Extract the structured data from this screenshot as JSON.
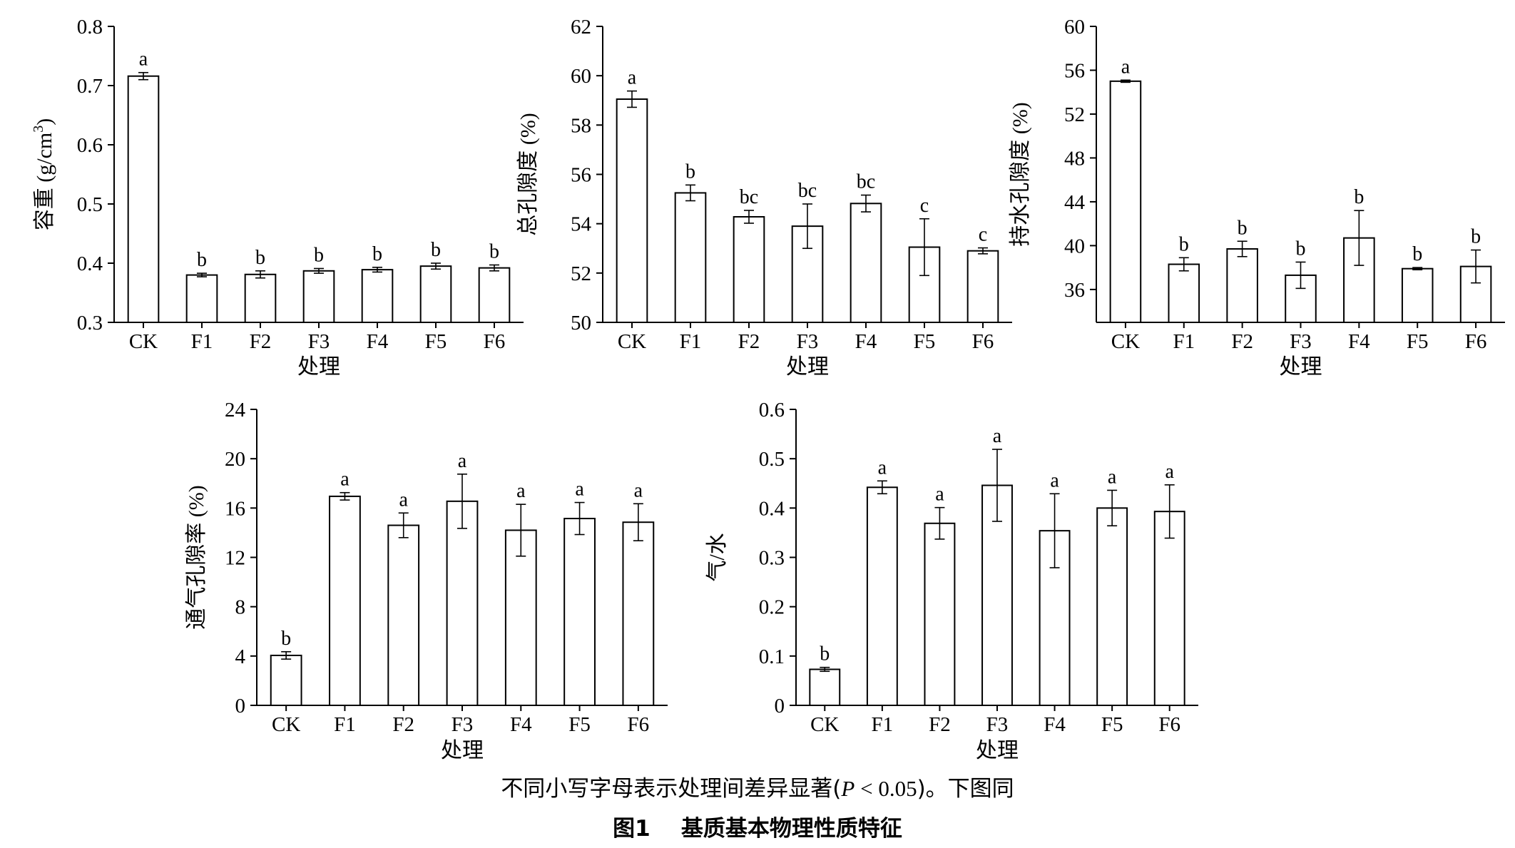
{
  "chart_data": [
    {
      "type": "bar",
      "categories": [
        "CK",
        "F1",
        "F2",
        "F3",
        "F4",
        "F5",
        "F6"
      ],
      "values": [
        0.716,
        0.38,
        0.381,
        0.387,
        0.389,
        0.395,
        0.392
      ],
      "errors": [
        0.006,
        0.003,
        0.006,
        0.004,
        0.004,
        0.005,
        0.005
      ],
      "letters": [
        "a",
        "b",
        "b",
        "b",
        "b",
        "b",
        "b"
      ],
      "ylabel": "容重 (g/cm",
      "ylabel_sup": "3",
      "ylabel_tail": ")",
      "xlabel": "处理",
      "ylim": [
        0.3,
        0.8
      ],
      "yticks": [
        0.3,
        0.4,
        0.5,
        0.6,
        0.7,
        0.8
      ],
      "ytick_labels": [
        "0.3",
        "0.4",
        "0.5",
        "0.6",
        "0.7",
        "0.8"
      ],
      "grid": false
    },
    {
      "type": "bar",
      "categories": [
        "CK",
        "F1",
        "F2",
        "F3",
        "F4",
        "F5",
        "F6"
      ],
      "values": [
        59.05,
        55.25,
        54.28,
        53.9,
        54.82,
        53.05,
        52.9
      ],
      "errors": [
        0.33,
        0.32,
        0.26,
        0.9,
        0.34,
        1.15,
        0.12
      ],
      "letters": [
        "a",
        "b",
        "bc",
        "bc",
        "bc",
        "c",
        "c"
      ],
      "ylabel": "总孔隙度 (%)",
      "xlabel": "处理",
      "ylim": [
        50,
        62
      ],
      "yticks": [
        50,
        52,
        54,
        56,
        58,
        60,
        62
      ],
      "ytick_labels": [
        "50",
        "52",
        "54",
        "56",
        "58",
        "60",
        "62"
      ],
      "grid": false
    },
    {
      "type": "bar",
      "categories": [
        "CK",
        "F1",
        "F2",
        "F3",
        "F4",
        "F5",
        "F6"
      ],
      "values": [
        55.0,
        38.3,
        39.7,
        37.3,
        40.7,
        37.9,
        38.1
      ],
      "errors": [
        0.1,
        0.6,
        0.7,
        1.2,
        2.5,
        0.1,
        1.5
      ],
      "letters": [
        "a",
        "b",
        "b",
        "b",
        "b",
        "b",
        "b"
      ],
      "ylabel": "持水孔隙度 (%)",
      "xlabel": "处理",
      "ylim": [
        33,
        60
      ],
      "yticks": [
        36,
        40,
        44,
        48,
        52,
        56,
        60
      ],
      "ytick_labels": [
        "36",
        "40",
        "44",
        "48",
        "52",
        "56",
        "60"
      ],
      "grid": false
    },
    {
      "type": "bar",
      "categories": [
        "CK",
        "F1",
        "F2",
        "F3",
        "F4",
        "F5",
        "F6"
      ],
      "values": [
        4.05,
        16.95,
        14.6,
        16.55,
        14.2,
        15.15,
        14.85
      ],
      "errors": [
        0.3,
        0.3,
        1.0,
        2.2,
        2.1,
        1.3,
        1.5
      ],
      "letters": [
        "b",
        "a",
        "a",
        "a",
        "a",
        "a",
        "a"
      ],
      "ylabel": "通气孔隙率 (%)",
      "xlabel": "处理",
      "ylim": [
        0,
        24
      ],
      "yticks": [
        0,
        4,
        8,
        12,
        16,
        20,
        24
      ],
      "ytick_labels": [
        "0",
        "4",
        "8",
        "12",
        "16",
        "20",
        "24"
      ],
      "grid": false
    },
    {
      "type": "bar",
      "categories": [
        "CK",
        "F1",
        "F2",
        "F3",
        "F4",
        "F5",
        "F6"
      ],
      "values": [
        0.073,
        0.442,
        0.369,
        0.446,
        0.354,
        0.4,
        0.393
      ],
      "errors": [
        0.004,
        0.013,
        0.032,
        0.073,
        0.075,
        0.036,
        0.054
      ],
      "letters": [
        "b",
        "a",
        "a",
        "a",
        "a",
        "a",
        "a"
      ],
      "ylabel": "气/水",
      "xlabel": "处理",
      "ylim": [
        0,
        0.6
      ],
      "yticks": [
        0,
        0.1,
        0.2,
        0.3,
        0.4,
        0.5,
        0.6
      ],
      "ytick_labels": [
        "0",
        "0.1",
        "0.2",
        "0.3",
        "0.4",
        "0.5",
        "0.6"
      ],
      "grid": false
    }
  ],
  "note": {
    "text_before": "不同小写字母表示处理间差异显著(",
    "p_symbol": "P",
    "p_value": " < 0.05",
    "text_after": ")。下图同"
  },
  "caption": "图1    基质基本物理性质特征"
}
